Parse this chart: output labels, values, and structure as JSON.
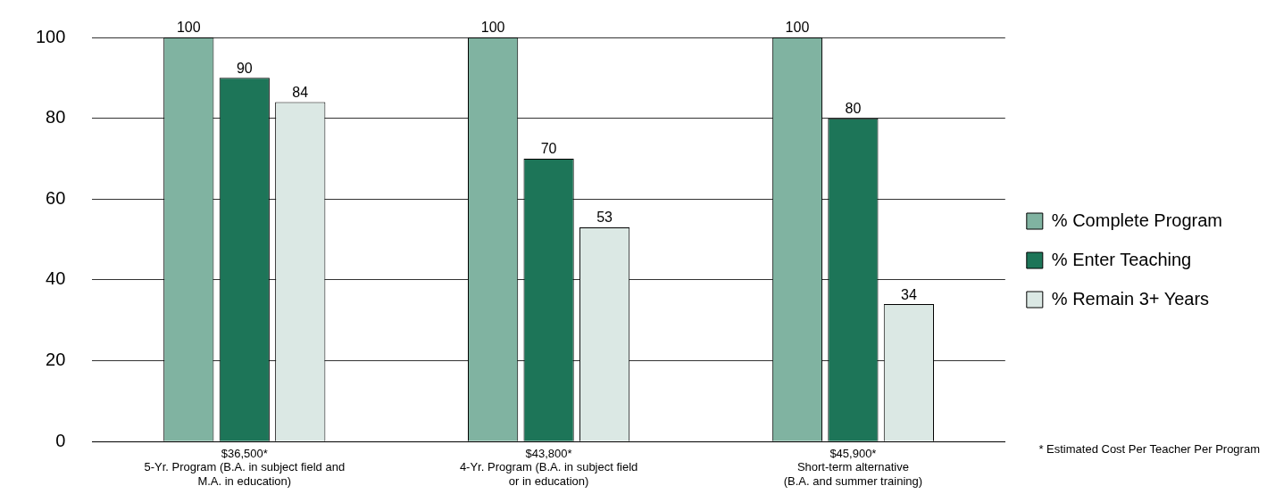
{
  "chart_data": {
    "type": "bar",
    "categories": [
      "$36,500*\n5-Yr. Program (B.A. in subject field and\nM.A. in education)",
      "$43,800*\n4-Yr. Program (B.A. in subject field\nor in education)",
      "$45,900*\nShort-term alternative\n(B.A. and summer training)"
    ],
    "series": [
      {
        "name": "% Complete Program",
        "color": "#80b3a1",
        "values": [
          100,
          100,
          100
        ]
      },
      {
        "name": "% Enter Teaching",
        "color": "#1d7558",
        "values": [
          90,
          70,
          80
        ]
      },
      {
        "name": "% Remain 3+ Years",
        "color": "#dbe8e4",
        "values": [
          84,
          53,
          34
        ]
      }
    ],
    "ylim": [
      0,
      100
    ],
    "yticks": [
      0,
      20,
      40,
      60,
      80,
      100
    ],
    "grid": "y",
    "legend": "right",
    "data_labels": true,
    "annotations": [
      "* Estimated Cost Per Teacher Per Program"
    ]
  }
}
